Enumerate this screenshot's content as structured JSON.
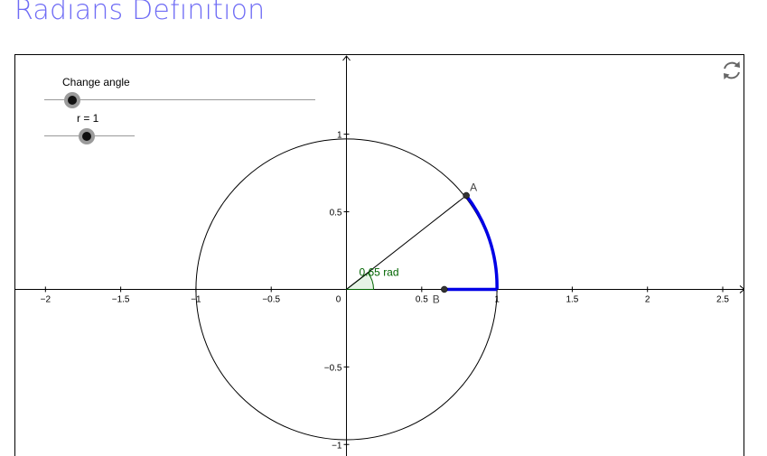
{
  "page": {
    "title": "Radians Definition"
  },
  "sliders": [
    {
      "label": "Change angle",
      "value": 0.65
    },
    {
      "label": "r = 1",
      "value": 1
    }
  ],
  "graph": {
    "x_range": [
      -2.2,
      2.65
    ],
    "y_range": [
      -1.08,
      1.51
    ],
    "x_ticks": [
      -2,
      -1.5,
      -1,
      -0.5,
      0.5,
      1,
      1.5,
      2,
      2.5
    ],
    "x_tick_labels": [
      "−2",
      "−1.5",
      "−1",
      "−0.5",
      "0.5",
      "1",
      "1.5",
      "2",
      "2.5"
    ],
    "y_ticks": [
      -1,
      -0.5,
      0.5,
      1
    ],
    "y_tick_labels": [
      "−1",
      "−0.5",
      "0.5",
      "1"
    ],
    "origin_label": "0",
    "circle_radius": 1,
    "angle_rad": 0.65,
    "angle_label": "0.65 rad",
    "point_a": {
      "label": "A"
    },
    "point_b": {
      "label": "B",
      "x": 0.65
    },
    "colors": {
      "arc": "#0000e6",
      "angle_label": "#006400",
      "angle_fill": "#e6f3e6"
    }
  },
  "icons": {
    "reset": "reset-icon"
  }
}
